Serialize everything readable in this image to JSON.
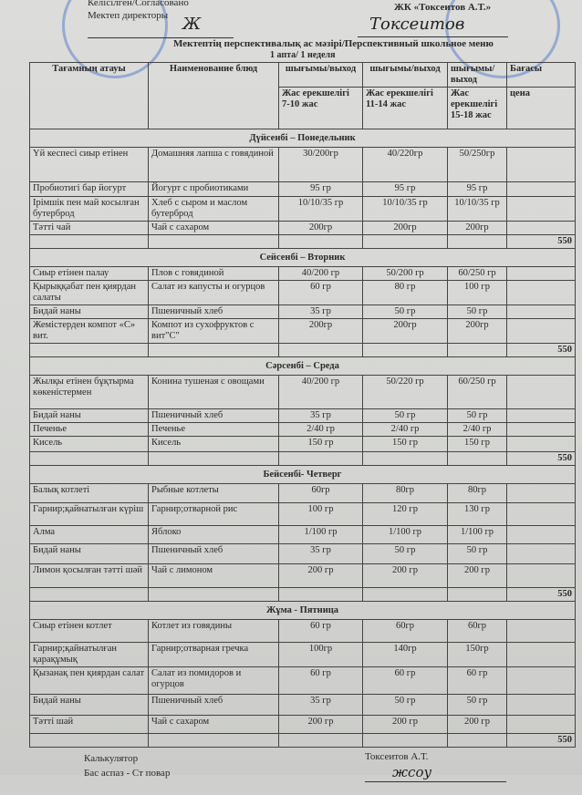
{
  "approval": {
    "left_label": "Келісілген/Согласовано",
    "left_role": "Мектеп директоры",
    "right_label": "ЖК «Токсеитов А.Т.»"
  },
  "title": "Мектептің перспективалық ас мәзірі/Перспективный школьное меню",
  "subtitle": "1 апта/ 1 неделя",
  "headers": {
    "name_kz": "Тағамның атауы",
    "name_ru": "Наименование блюд",
    "out1": "шығымы/выход",
    "out2": "шығымы/выход",
    "out3": "шығымы/ выход",
    "price": "Бағасы",
    "age1": "Жас ерекшелігі 7-10 жас",
    "age2": "Жас ерекшелігі 11-14 жас",
    "age3": "Жас ерекшелігі 15-18 жас",
    "price_ru": "цена"
  },
  "days": [
    {
      "day": "Дүйсенбі – Понедельник",
      "total": "550",
      "rows": [
        [
          "Үй кеспесі сиыр етінен",
          "Домашняя лапша с говядиной",
          "30/200гр",
          "40/220гр",
          "50/250гр"
        ],
        [
          "Пробиотигі бар йогурт",
          "Йогурт с пробиотиками",
          "95 гр",
          "95 гр",
          "95 гр"
        ],
        [
          "Ірімшік пен май косылған бутерброд",
          "Хлеб с сыром и маслом бутерброд",
          "10/10/35 гр",
          "10/10/35 гр",
          "10/10/35 гр"
        ],
        [
          "Тәтті чай",
          "Чай с сахаром",
          "200гр",
          "200гр",
          "200гр"
        ]
      ]
    },
    {
      "day": "Сейсенбі – Вторник",
      "total": "550",
      "rows": [
        [
          "Сиыр етінен палау",
          "Плов с говядиной",
          "40/200 гр",
          "50/200 гр",
          "60/250 гр"
        ],
        [
          "Қырыққабат пен қиярдан салаты",
          "Салат из капусты и огурцов",
          "60 гр",
          "80 гр",
          "100 гр"
        ],
        [
          "Бидай наны",
          "Пшеничный хлеб",
          "35 гр",
          "50 гр",
          "50 гр"
        ],
        [
          "Жемістерден компот «С» вит.",
          "Компот из сухофруктов с вит\"С\"",
          "200гр",
          "200гр",
          "200гр"
        ]
      ]
    },
    {
      "day": "Сәрсенбі – Среда",
      "total": "550",
      "rows": [
        [
          "Жылқы етінен бұқтырма көкеністермен",
          "Конина тушеная с овощами",
          "40/200 гр",
          "50/220 гр",
          "60/250 гр"
        ],
        [
          "Бидай наны",
          "Пшеничный хлеб",
          "35 гр",
          "50 гр",
          "50 гр"
        ],
        [
          "Печенье",
          "Печенье",
          "2/40 гр",
          "2/40 гр",
          "2/40 гр"
        ],
        [
          "Кисель",
          "Кисель",
          "150 гр",
          "150 гр",
          "150 гр"
        ]
      ]
    },
    {
      "day": "Бейсенбі- Четверг",
      "total": "550",
      "rows": [
        [
          "Балық котлеті",
          "Рыбные котлеты",
          "60гр",
          "80гр",
          "80гр"
        ],
        [
          "Гарнир;қайнатылған күріш",
          "Гарнир;отварной рис",
          "100 гр",
          "120 гр",
          "130 гр"
        ],
        [
          "Алма",
          "Яблоко",
          "1/100 гр",
          "1/100 гр",
          "1/100 гр"
        ],
        [
          "Бидай наны",
          "Пшеничный хлеб",
          "35 гр",
          "50 гр",
          "50 гр"
        ],
        [
          "Лимон қосылған тәтті шәй",
          "Чай с лимоном",
          "200 гр",
          "200 гр",
          "200 гр"
        ]
      ]
    },
    {
      "day": "Жұма - Пятница",
      "total": "550",
      "rows": [
        [
          "Сиыр етінен котлет",
          "Котлет из говядины",
          "60 гр",
          "60гр",
          "60гр"
        ],
        [
          "Гарнир;қайнатылған қарақұмық",
          "Гарнир;отварная гречка",
          "100гр",
          "140гр",
          "150гр"
        ],
        [
          "Қызанақ пен қиярдан салат",
          "Салат из помидоров и огурцов",
          "60 гр",
          "60 гр",
          "60 гр"
        ],
        [
          "Бидай наны",
          "Пшеничный хлеб",
          "35 гр",
          "50 гр",
          "50 гр"
        ],
        [
          "Тәтті шай",
          "Чай с сахаром",
          "200 гр",
          "200 гр",
          "200 гр"
        ]
      ]
    }
  ],
  "footer": {
    "calc": "Калькулятор",
    "chef": "Бас аспаз - Ст повар",
    "signer": "Токсеитов А.Т."
  },
  "colors": {
    "stamp": "#3c6ec8",
    "paper": "#d8d8d6"
  }
}
